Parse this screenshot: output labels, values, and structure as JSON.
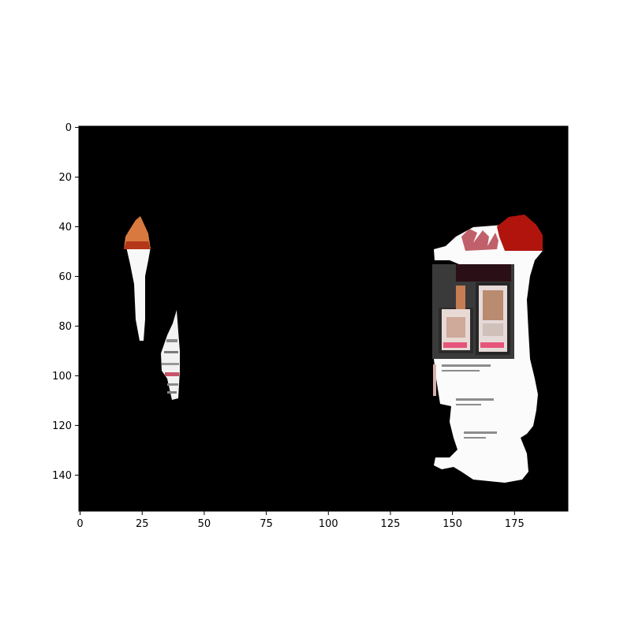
{
  "image": {
    "background_color": "#000000",
    "x_ticks": [
      0,
      25,
      50,
      75,
      100,
      125,
      150,
      175
    ],
    "y_ticks": [
      0,
      20,
      40,
      60,
      80,
      100,
      120,
      140
    ],
    "x_range": [
      -0.5,
      196.5
    ],
    "y_range": [
      154.5,
      -0.5
    ]
  }
}
